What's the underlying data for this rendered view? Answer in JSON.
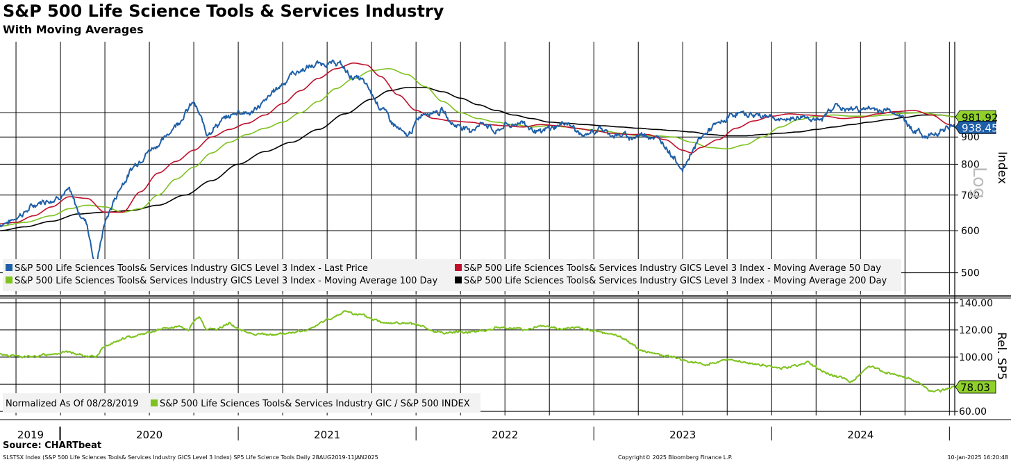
{
  "title": "S&P 500 Life Science Tools & Services Industry",
  "subtitle": "With Moving Averages",
  "source": "Source: CHARTbeat",
  "footer": {
    "left": "SLSTSX Index (S&P 500 Life Sciences Tools& Services Industry GICS Level 3 Index) SP5 Life Science Tools  Daily 28AUG2019-11JAN2025",
    "middle": "Copyright© 2025 Bloomberg Finance L.P.",
    "right": "10-Jan-2025 16:20:48"
  },
  "colors": {
    "price": "#1f5fa8",
    "ma50": "#c0102a",
    "ma100": "#7dc21e",
    "ma200": "#000000",
    "relative": "#7dc21e"
  },
  "chart_data": [
    {
      "type": "line",
      "panel": "upper",
      "scale": "log",
      "ylabel": "Index",
      "scale_label": "Log",
      "ylim": [
        455,
        1360
      ],
      "yticks": [
        "900",
        "800",
        "700",
        "600",
        "500"
      ],
      "ytick_values": [
        900,
        800,
        700,
        600,
        500
      ],
      "x_categories": [
        "2019",
        "2020",
        "2021",
        "2022",
        "2023",
        "2024"
      ],
      "x_range": [
        2019.66,
        2025.03
      ],
      "last_value_labels": [
        {
          "text": "981.92",
          "value": 981.92,
          "series": "ma100"
        },
        {
          "text": "938.45",
          "value": 938.45,
          "series": "price"
        }
      ],
      "legend": [
        {
          "label": "S&P 500 Life Sciences Tools& Services Industry GICS Level 3 Index - Last Price",
          "series": "price"
        },
        {
          "label": "S&P 500 Life Sciences Tools& Services Industry GICS Level 3 Index - Moving Average 50 Day",
          "series": "ma50"
        },
        {
          "label": "S&P 500 Life Sciences Tools& Services Industry GICS Level 3 Index - Moving Average 100 Day",
          "series": "ma100"
        },
        {
          "label": "S&P 500 Life Sciences Tools& Services Industry GICS Level 3 Index - Moving Average 200 Day",
          "series": "ma200"
        }
      ],
      "series": [
        {
          "name": "price",
          "x": [
            2019.66,
            2019.75,
            2019.85,
            2019.95,
            2020.05,
            2020.1,
            2020.15,
            2020.2,
            2020.22,
            2020.25,
            2020.3,
            2020.35,
            2020.42,
            2020.5,
            2020.58,
            2020.66,
            2020.75,
            2020.82,
            2020.9,
            2020.95,
            2021.0,
            2021.08,
            2021.15,
            2021.2,
            2021.3,
            2021.4,
            2021.5,
            2021.56,
            2021.63,
            2021.7,
            2021.8,
            2021.87,
            2021.95,
            2022.03,
            2022.1,
            2022.15,
            2022.2,
            2022.3,
            2022.38,
            2022.45,
            2022.5,
            2022.6,
            2022.7,
            2022.78,
            2022.85,
            2022.95,
            2023.03,
            2023.1,
            2023.2,
            2023.3,
            2023.38,
            2023.45,
            2023.5,
            2023.55,
            2023.6,
            2023.65,
            2023.72,
            2023.8,
            2023.9,
            2023.98,
            2024.05,
            2024.12,
            2024.2,
            2024.27,
            2024.35,
            2024.42,
            2024.5,
            2024.58,
            2024.65,
            2024.72,
            2024.8,
            2024.88,
            2024.95,
            2025.03
          ],
          "values": [
            615,
            635,
            668,
            690,
            710,
            650,
            620,
            505,
            560,
            620,
            680,
            740,
            800,
            850,
            890,
            960,
            1050,
            920,
            960,
            980,
            1010,
            1000,
            1050,
            1100,
            1180,
            1220,
            1235,
            1240,
            1175,
            1150,
            1030,
            960,
            900,
            990,
            1010,
            1010,
            960,
            930,
            960,
            920,
            950,
            960,
            920,
            940,
            960,
            900,
            930,
            910,
            900,
            915,
            880,
            830,
            780,
            850,
            900,
            930,
            960,
            1000,
            990,
            985,
            960,
            975,
            980,
            960,
            1035,
            1010,
            1020,
            1010,
            1010,
            985,
            930,
            900,
            930,
            938
          ]
        },
        {
          "name": "ma50",
          "x": [
            2019.66,
            2019.75,
            2019.85,
            2019.95,
            2020.05,
            2020.15,
            2020.25,
            2020.35,
            2020.45,
            2020.55,
            2020.65,
            2020.75,
            2020.85,
            2020.95,
            2021.05,
            2021.15,
            2021.25,
            2021.35,
            2021.45,
            2021.55,
            2021.65,
            2021.72,
            2021.8,
            2021.9,
            2022.0,
            2022.1,
            2022.2,
            2022.3,
            2022.4,
            2022.5,
            2022.6,
            2022.7,
            2022.8,
            2022.9,
            2023.0,
            2023.1,
            2023.2,
            2023.3,
            2023.4,
            2023.5,
            2023.55,
            2023.6,
            2023.7,
            2023.8,
            2023.9,
            2024.0,
            2024.1,
            2024.2,
            2024.3,
            2024.4,
            2024.5,
            2024.6,
            2024.7,
            2024.8,
            2024.9,
            2025.0,
            2025.03
          ],
          "values": [
            618,
            622,
            640,
            665,
            695,
            690,
            650,
            650,
            710,
            770,
            810,
            850,
            900,
            930,
            955,
            990,
            1040,
            1100,
            1160,
            1210,
            1240,
            1230,
            1170,
            1080,
            1010,
            975,
            965,
            960,
            950,
            945,
            940,
            950,
            945,
            935,
            925,
            915,
            910,
            910,
            890,
            850,
            840,
            860,
            890,
            935,
            965,
            985,
            995,
            990,
            985,
            975,
            980,
            995,
            1005,
            1010,
            990,
            950,
            940
          ]
        },
        {
          "name": "ma100",
          "x": [
            2019.66,
            2019.8,
            2019.95,
            2020.05,
            2020.15,
            2020.25,
            2020.35,
            2020.45,
            2020.55,
            2020.65,
            2020.75,
            2020.85,
            2020.95,
            2021.05,
            2021.15,
            2021.25,
            2021.35,
            2021.45,
            2021.55,
            2021.65,
            2021.75,
            2021.85,
            2021.95,
            2022.05,
            2022.15,
            2022.25,
            2022.35,
            2022.45,
            2022.55,
            2022.65,
            2022.75,
            2022.85,
            2022.95,
            2023.05,
            2023.15,
            2023.25,
            2023.35,
            2023.45,
            2023.55,
            2023.65,
            2023.75,
            2023.85,
            2023.95,
            2024.05,
            2024.15,
            2024.25,
            2024.35,
            2024.45,
            2024.55,
            2024.65,
            2024.75,
            2024.85,
            2024.95,
            2025.03
          ],
          "values": [
            612,
            622,
            640,
            660,
            670,
            665,
            650,
            660,
            700,
            750,
            790,
            840,
            880,
            910,
            935,
            960,
            1000,
            1050,
            1110,
            1160,
            1200,
            1210,
            1180,
            1120,
            1050,
            1000,
            975,
            960,
            950,
            940,
            945,
            940,
            930,
            925,
            915,
            905,
            905,
            900,
            880,
            860,
            855,
            870,
            900,
            940,
            970,
            985,
            990,
            985,
            985,
            990,
            998,
            1000,
            990,
            982
          ]
        },
        {
          "name": "ma200",
          "x": [
            2019.66,
            2019.8,
            2019.95,
            2020.1,
            2020.25,
            2020.4,
            2020.55,
            2020.7,
            2020.85,
            2021.0,
            2021.15,
            2021.3,
            2021.45,
            2021.6,
            2021.75,
            2021.85,
            2021.95,
            2022.05,
            2022.15,
            2022.25,
            2022.35,
            2022.45,
            2022.55,
            2022.65,
            2022.75,
            2022.85,
            2022.95,
            2023.05,
            2023.15,
            2023.25,
            2023.35,
            2023.45,
            2023.55,
            2023.65,
            2023.75,
            2023.85,
            2023.95,
            2024.05,
            2024.15,
            2024.25,
            2024.35,
            2024.45,
            2024.55,
            2024.65,
            2024.75,
            2024.85,
            2024.95,
            2025.03
          ],
          "values": [
            600,
            610,
            625,
            645,
            650,
            655,
            670,
            700,
            745,
            800,
            845,
            880,
            930,
            995,
            1060,
            1100,
            1115,
            1115,
            1095,
            1065,
            1035,
            1010,
            990,
            975,
            960,
            955,
            950,
            945,
            940,
            935,
            930,
            925,
            920,
            910,
            905,
            905,
            910,
            915,
            920,
            930,
            940,
            950,
            960,
            970,
            980,
            990,
            990,
            982
          ]
        }
      ]
    },
    {
      "type": "line",
      "panel": "lower",
      "ylabel": "Rel. SP5",
      "ylim": [
        57,
        143
      ],
      "yticks": [
        "140.00",
        "120.00",
        "100.00",
        "60.00"
      ],
      "ytick_values": [
        140,
        120,
        100,
        60
      ],
      "last_value_label": {
        "text": "78.03",
        "value": 78.03
      },
      "legend_prefix": "Normalized As Of 08/28/2019",
      "legend": [
        {
          "label": "S&P 500 Life Sciences Tools& Services Industry GIC / S&P 500 INDEX",
          "series": "relative"
        }
      ],
      "series": [
        {
          "name": "relative",
          "x": [
            2019.66,
            2019.75,
            2019.85,
            2019.95,
            2020.05,
            2020.15,
            2020.2,
            2020.25,
            2020.35,
            2020.45,
            2020.55,
            2020.65,
            2020.72,
            2020.78,
            2020.82,
            2020.88,
            2020.95,
            2021.02,
            2021.1,
            2021.2,
            2021.3,
            2021.4,
            2021.5,
            2021.56,
            2021.6,
            2021.7,
            2021.8,
            2021.9,
            2022.0,
            2022.1,
            2022.2,
            2022.3,
            2022.4,
            2022.5,
            2022.6,
            2022.7,
            2022.8,
            2022.9,
            2023.0,
            2023.05,
            2023.15,
            2023.25,
            2023.35,
            2023.45,
            2023.55,
            2023.65,
            2023.75,
            2023.85,
            2023.95,
            2024.05,
            2024.15,
            2024.2,
            2024.25,
            2024.35,
            2024.45,
            2024.55,
            2024.65,
            2024.72,
            2024.8,
            2024.88,
            2024.95,
            2025.03
          ],
          "values": [
            102,
            101,
            100,
            103,
            104,
            100,
            101,
            108,
            113,
            117,
            120,
            122,
            120,
            130,
            121,
            120,
            125,
            119,
            117,
            116,
            118,
            120,
            128,
            130,
            134,
            130,
            126,
            125,
            124,
            118,
            118,
            119,
            120,
            122,
            120,
            123,
            121,
            122,
            119,
            118,
            115,
            106,
            102,
            100,
            96,
            95,
            98,
            96,
            94,
            92,
            94,
            97,
            92,
            86,
            82,
            94,
            88,
            86,
            83,
            76,
            75,
            78
          ]
        }
      ]
    }
  ]
}
